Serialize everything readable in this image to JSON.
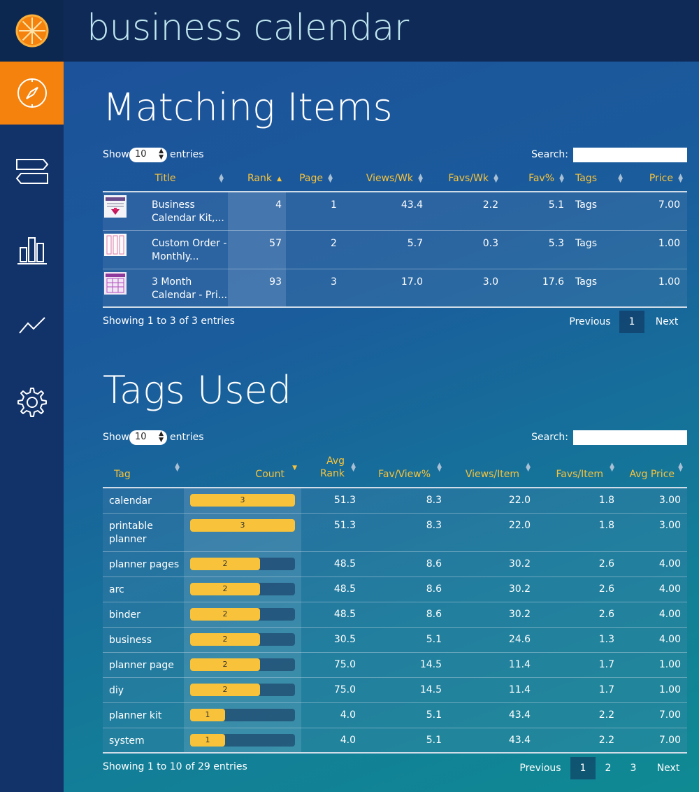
{
  "app": {
    "title": "business calendar"
  },
  "sidebar": {
    "logo_icon": "orange-slice-icon",
    "items": [
      {
        "icon": "compass-icon",
        "active": true
      },
      {
        "icon": "signpost-icon",
        "active": false
      },
      {
        "icon": "bar-chart-icon",
        "active": false
      },
      {
        "icon": "trend-line-icon",
        "active": false
      },
      {
        "icon": "gear-icon",
        "active": false
      }
    ]
  },
  "matching": {
    "title": "Matching Items",
    "show_label": "Show",
    "show_value": "10",
    "entries_label": "entries",
    "search_label": "Search:",
    "columns": [
      "Title",
      "Rank",
      "Page",
      "Views/Wk",
      "Favs/Wk",
      "Fav%",
      "Tags",
      "Price"
    ],
    "rows": [
      {
        "title_l1": "Business",
        "title_l2": "Calendar Kit,...",
        "rank": "4",
        "page": "1",
        "views": "43.4",
        "favs": "2.2",
        "favpct": "5.1",
        "tags": "Tags",
        "price": "7.00"
      },
      {
        "title_l1": "Custom Order -",
        "title_l2": "Monthly...",
        "rank": "57",
        "page": "2",
        "views": "5.7",
        "favs": "0.3",
        "favpct": "5.3",
        "tags": "Tags",
        "price": "1.00"
      },
      {
        "title_l1": "3 Month",
        "title_l2": "Calendar - Pri...",
        "rank": "93",
        "page": "3",
        "views": "17.0",
        "favs": "3.0",
        "favpct": "17.6",
        "tags": "Tags",
        "price": "1.00"
      }
    ],
    "info": "Showing 1 to 3 of 3 entries",
    "pager": {
      "prev": "Previous",
      "pages": [
        "1"
      ],
      "next": "Next"
    }
  },
  "tags": {
    "title": "Tags Used",
    "show_label": "Show",
    "show_value": "10",
    "entries_label": "entries",
    "search_label": "Search:",
    "columns": {
      "tag": "Tag",
      "count": "Count",
      "avg_rank_l1": "Avg",
      "avg_rank_l2": "Rank",
      "fav_view": "Fav/View%",
      "views_item": "Views/Item",
      "favs_item": "Favs/Item",
      "avg_price": "Avg Price"
    },
    "max_count": 3,
    "rows": [
      {
        "tag_l1": "calendar",
        "tag_l2": "",
        "count": 3,
        "avg_rank": "51.3",
        "fav_view": "8.3",
        "views_item": "22.0",
        "favs_item": "1.8",
        "avg_price": "3.00"
      },
      {
        "tag_l1": "printable",
        "tag_l2": "planner",
        "count": 3,
        "avg_rank": "51.3",
        "fav_view": "8.3",
        "views_item": "22.0",
        "favs_item": "1.8",
        "avg_price": "3.00"
      },
      {
        "tag_l1": "planner pages",
        "tag_l2": "",
        "count": 2,
        "avg_rank": "48.5",
        "fav_view": "8.6",
        "views_item": "30.2",
        "favs_item": "2.6",
        "avg_price": "4.00"
      },
      {
        "tag_l1": "arc",
        "tag_l2": "",
        "count": 2,
        "avg_rank": "48.5",
        "fav_view": "8.6",
        "views_item": "30.2",
        "favs_item": "2.6",
        "avg_price": "4.00"
      },
      {
        "tag_l1": "binder",
        "tag_l2": "",
        "count": 2,
        "avg_rank": "48.5",
        "fav_view": "8.6",
        "views_item": "30.2",
        "favs_item": "2.6",
        "avg_price": "4.00"
      },
      {
        "tag_l1": "business",
        "tag_l2": "",
        "count": 2,
        "avg_rank": "30.5",
        "fav_view": "5.1",
        "views_item": "24.6",
        "favs_item": "1.3",
        "avg_price": "4.00"
      },
      {
        "tag_l1": "planner page",
        "tag_l2": "",
        "count": 2,
        "avg_rank": "75.0",
        "fav_view": "14.5",
        "views_item": "11.4",
        "favs_item": "1.7",
        "avg_price": "1.00"
      },
      {
        "tag_l1": "diy",
        "tag_l2": "",
        "count": 2,
        "avg_rank": "75.0",
        "fav_view": "14.5",
        "views_item": "11.4",
        "favs_item": "1.7",
        "avg_price": "1.00"
      },
      {
        "tag_l1": "planner kit",
        "tag_l2": "",
        "count": 1,
        "avg_rank": "4.0",
        "fav_view": "5.1",
        "views_item": "43.4",
        "favs_item": "2.2",
        "avg_price": "7.00"
      },
      {
        "tag_l1": "system",
        "tag_l2": "",
        "count": 1,
        "avg_rank": "4.0",
        "fav_view": "5.1",
        "views_item": "43.4",
        "favs_item": "2.2",
        "avg_price": "7.00"
      }
    ],
    "info": "Showing 1 to 10 of 29 entries",
    "pager": {
      "prev": "Previous",
      "pages": [
        "1",
        "2",
        "3"
      ],
      "next": "Next"
    }
  },
  "colors": {
    "accent": "#f5820d",
    "header_text": "#f8c33a",
    "bar": "#f8c33a"
  }
}
